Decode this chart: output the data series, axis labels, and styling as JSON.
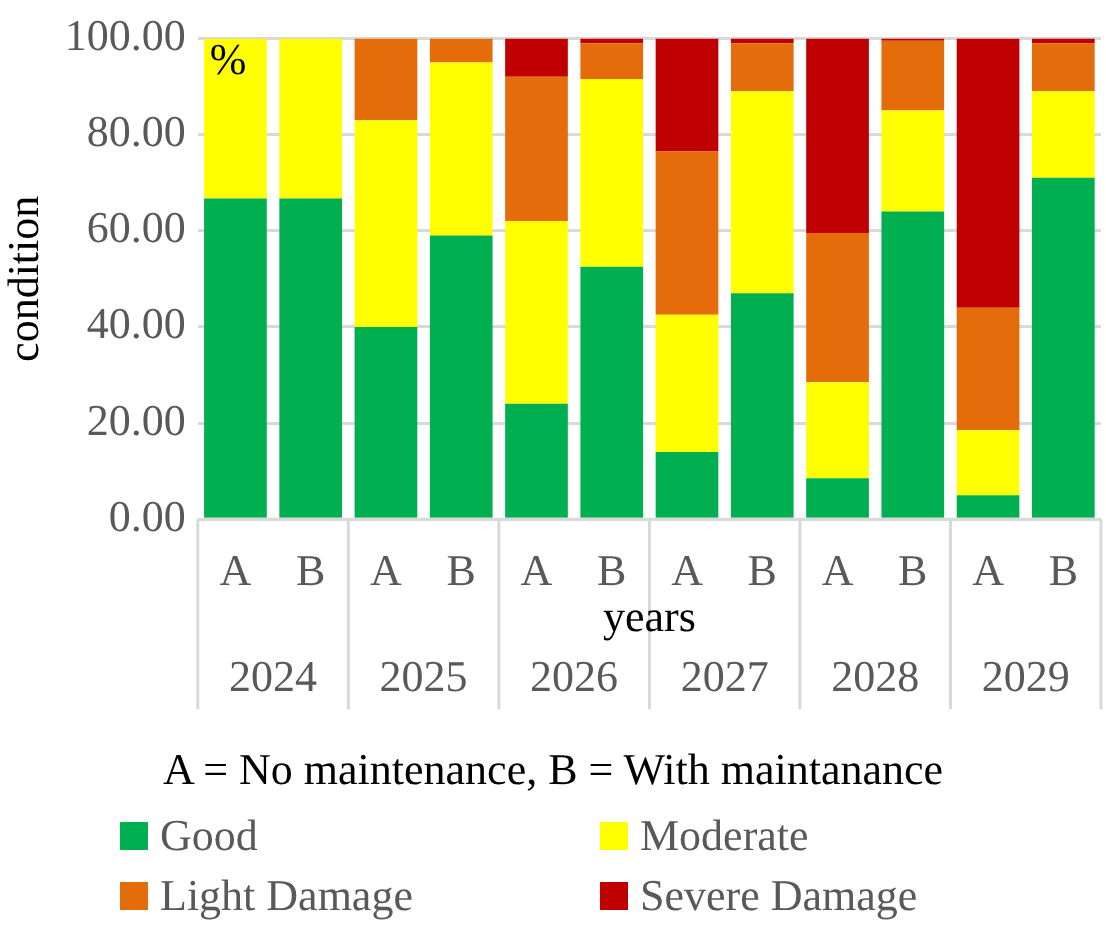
{
  "chart_data": {
    "type": "bar",
    "stacked": true,
    "ylabel": "condition",
    "xlabel": "years",
    "legend_title": "A = No maintenance, B = With maintanance",
    "legend": "bottom",
    "grid": "y",
    "categories": [
      "A",
      "B",
      "A",
      "B",
      "A",
      "B",
      "A",
      "B",
      "A",
      "B",
      "A",
      "B"
    ],
    "annotations": [
      "%",
      "2024",
      "2025",
      "2026",
      "2027",
      "2028",
      "2029"
    ],
    "ylim": [
      0,
      100
    ],
    "yticks": [
      {
        "value": 0,
        "label": "0.00"
      },
      {
        "value": 20,
        "label": "20.00"
      },
      {
        "value": 40,
        "label": "40.00"
      },
      {
        "value": 60,
        "label": "60.00"
      },
      {
        "value": 80,
        "label": "80.00"
      },
      {
        "value": 100,
        "label": "100.00"
      }
    ],
    "series": [
      {
        "name": "Good",
        "color": "#00b050",
        "values": [
          66.7,
          66.7,
          40,
          59,
          24,
          52.5,
          14,
          47,
          8.5,
          64,
          5,
          71
        ]
      },
      {
        "name": "Moderate",
        "color": "#ffff00",
        "values": [
          33.3,
          33.3,
          43,
          36,
          38,
          39,
          28.5,
          42,
          20,
          21,
          13.5,
          18
        ]
      },
      {
        "name": "Light Damage",
        "color": "#e46c0a",
        "values": [
          0,
          0,
          17,
          5,
          30,
          7.5,
          34,
          10,
          31,
          14.5,
          25.5,
          10
        ]
      },
      {
        "name": "Severe Damage",
        "color": "#c00000",
        "values": [
          0,
          0,
          0,
          0,
          8,
          1,
          23.5,
          1,
          40.5,
          0.5,
          56,
          1
        ]
      }
    ]
  }
}
